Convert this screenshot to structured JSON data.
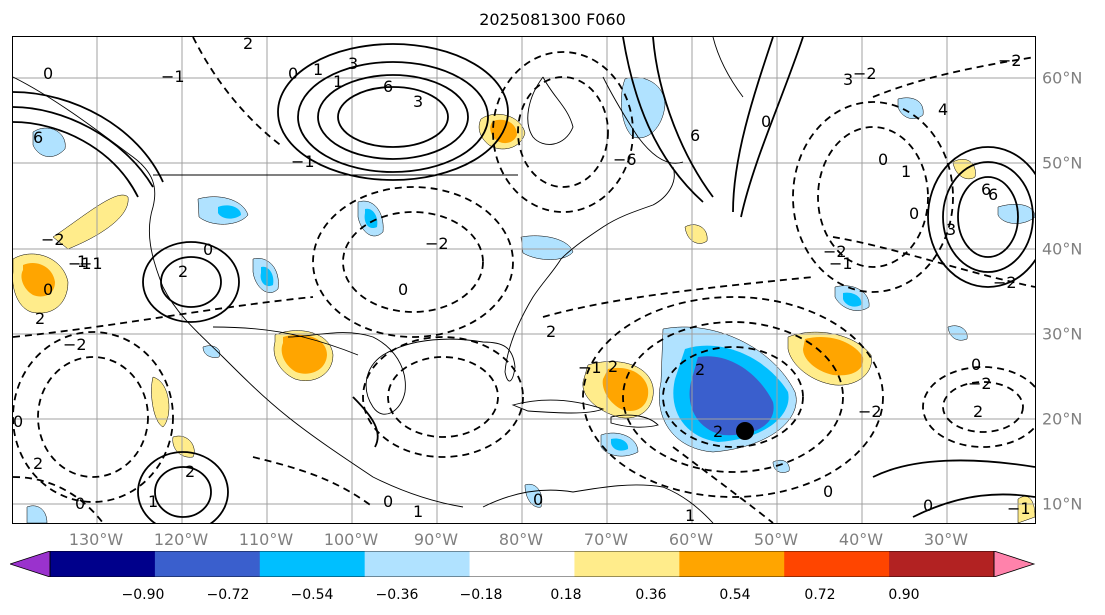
{
  "title": "2025081300 F060",
  "lon_labels": [
    "130°W",
    "120°W",
    "110°W",
    "100°W",
    "90°W",
    "80°W",
    "70°W",
    "60°W",
    "50°W",
    "40°W",
    "30°W"
  ],
  "lat_labels": [
    "60°N",
    "50°N",
    "40°N",
    "30°N",
    "20°N",
    "10°N"
  ],
  "colorbar": {
    "colors": [
      "#9a32cd",
      "#00008b",
      "#3a5fcd",
      "#00bfff",
      "#b0e2ff",
      "#ffffff",
      "#ffec8b",
      "#ffa500",
      "#ff4500",
      "#b22222",
      "#ff82ab"
    ],
    "ticks": [
      "−0.90",
      "−0.72",
      "−0.54",
      "−0.36",
      "−0.18",
      "0.18",
      "0.36",
      "0.54",
      "0.72",
      "0.90"
    ]
  },
  "contour_labels": [
    "2",
    "−1",
    "0",
    "6",
    "3",
    "1",
    "−2",
    "1",
    "6",
    "3",
    "0",
    "−1",
    "6",
    "−2",
    "2",
    "0",
    "−1",
    "0",
    "−2",
    "2",
    "0",
    "2",
    "1",
    "2",
    "0",
    "0",
    "1",
    "2",
    "0",
    "−2",
    "−1",
    "2",
    "−1",
    "−2",
    "0",
    "1",
    "0",
    "3",
    "6",
    "4",
    "−2",
    "−2",
    "0",
    "2",
    "−1",
    "0",
    "1",
    "−2",
    "0",
    "−6",
    "6",
    "3",
    "0",
    "−2",
    "2",
    "1",
    "−1",
    "2",
    "0"
  ],
  "marker": "storm-position"
}
